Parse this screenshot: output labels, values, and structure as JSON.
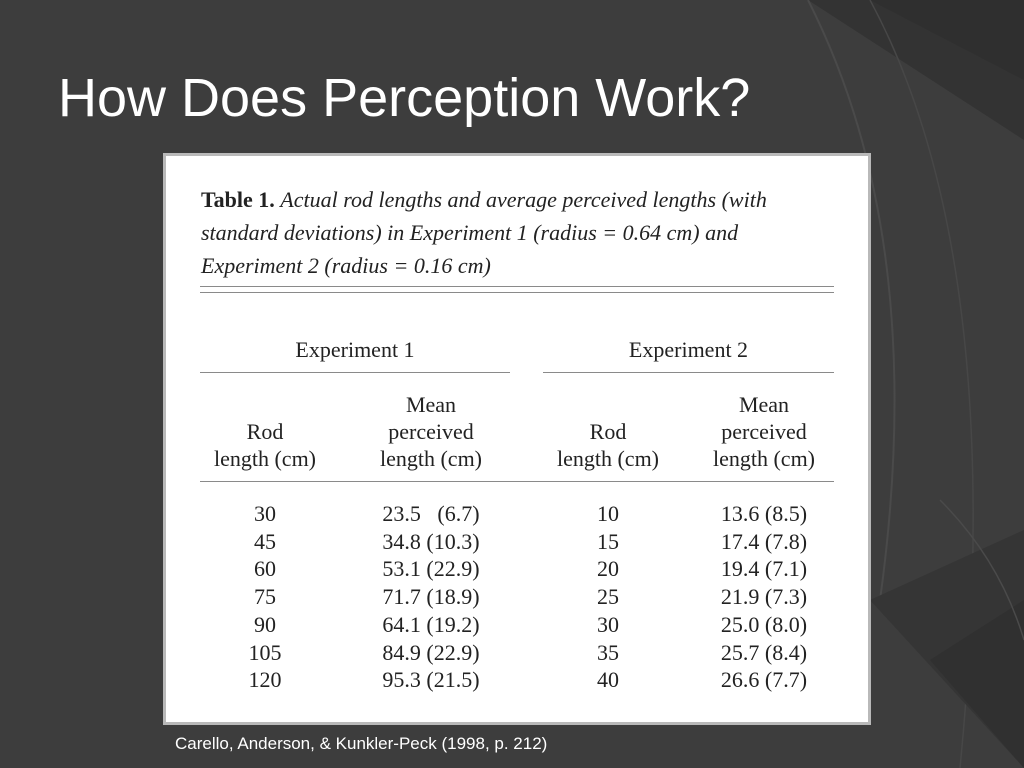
{
  "slide": {
    "title": "How Does Perception Work?",
    "source": "Carello, Anderson, & Kunkler-Peck (1998, p. 212)"
  },
  "table": {
    "caption_label": "Table 1.",
    "caption_text": "Actual rod lengths and average perceived lengths (with standard deviations) in Experiment 1 (radius = 0.64 cm) and Experiment 2 (radius = 0.16 cm)",
    "groups": [
      "Experiment 1",
      "Experiment 2"
    ],
    "columns": [
      [
        "Rod",
        "length (cm)"
      ],
      [
        "Mean",
        "perceived",
        "length (cm)"
      ],
      [
        "Rod",
        "length (cm)"
      ],
      [
        "Mean",
        "perceived",
        "length (cm)"
      ]
    ],
    "rows": [
      [
        "30",
        "23.5   (6.7)",
        "10",
        "13.6 (8.5)"
      ],
      [
        "45",
        "34.8 (10.3)",
        "15",
        "17.4 (7.8)"
      ],
      [
        "60",
        "53.1 (22.9)",
        "20",
        "19.4 (7.1)"
      ],
      [
        "75",
        "71.7 (18.9)",
        "25",
        "21.9 (7.3)"
      ],
      [
        "90",
        "64.1 (19.2)",
        "30",
        "25.0 (8.0)"
      ],
      [
        "105",
        "84.9 (22.9)",
        "35",
        "25.7 (8.4)"
      ],
      [
        "120",
        "95.3 (21.5)",
        "40",
        "26.6 (7.7)"
      ]
    ]
  },
  "colors": {
    "background": "#3d3d3d",
    "title_text": "#ffffff",
    "table_background": "#ffffff"
  }
}
